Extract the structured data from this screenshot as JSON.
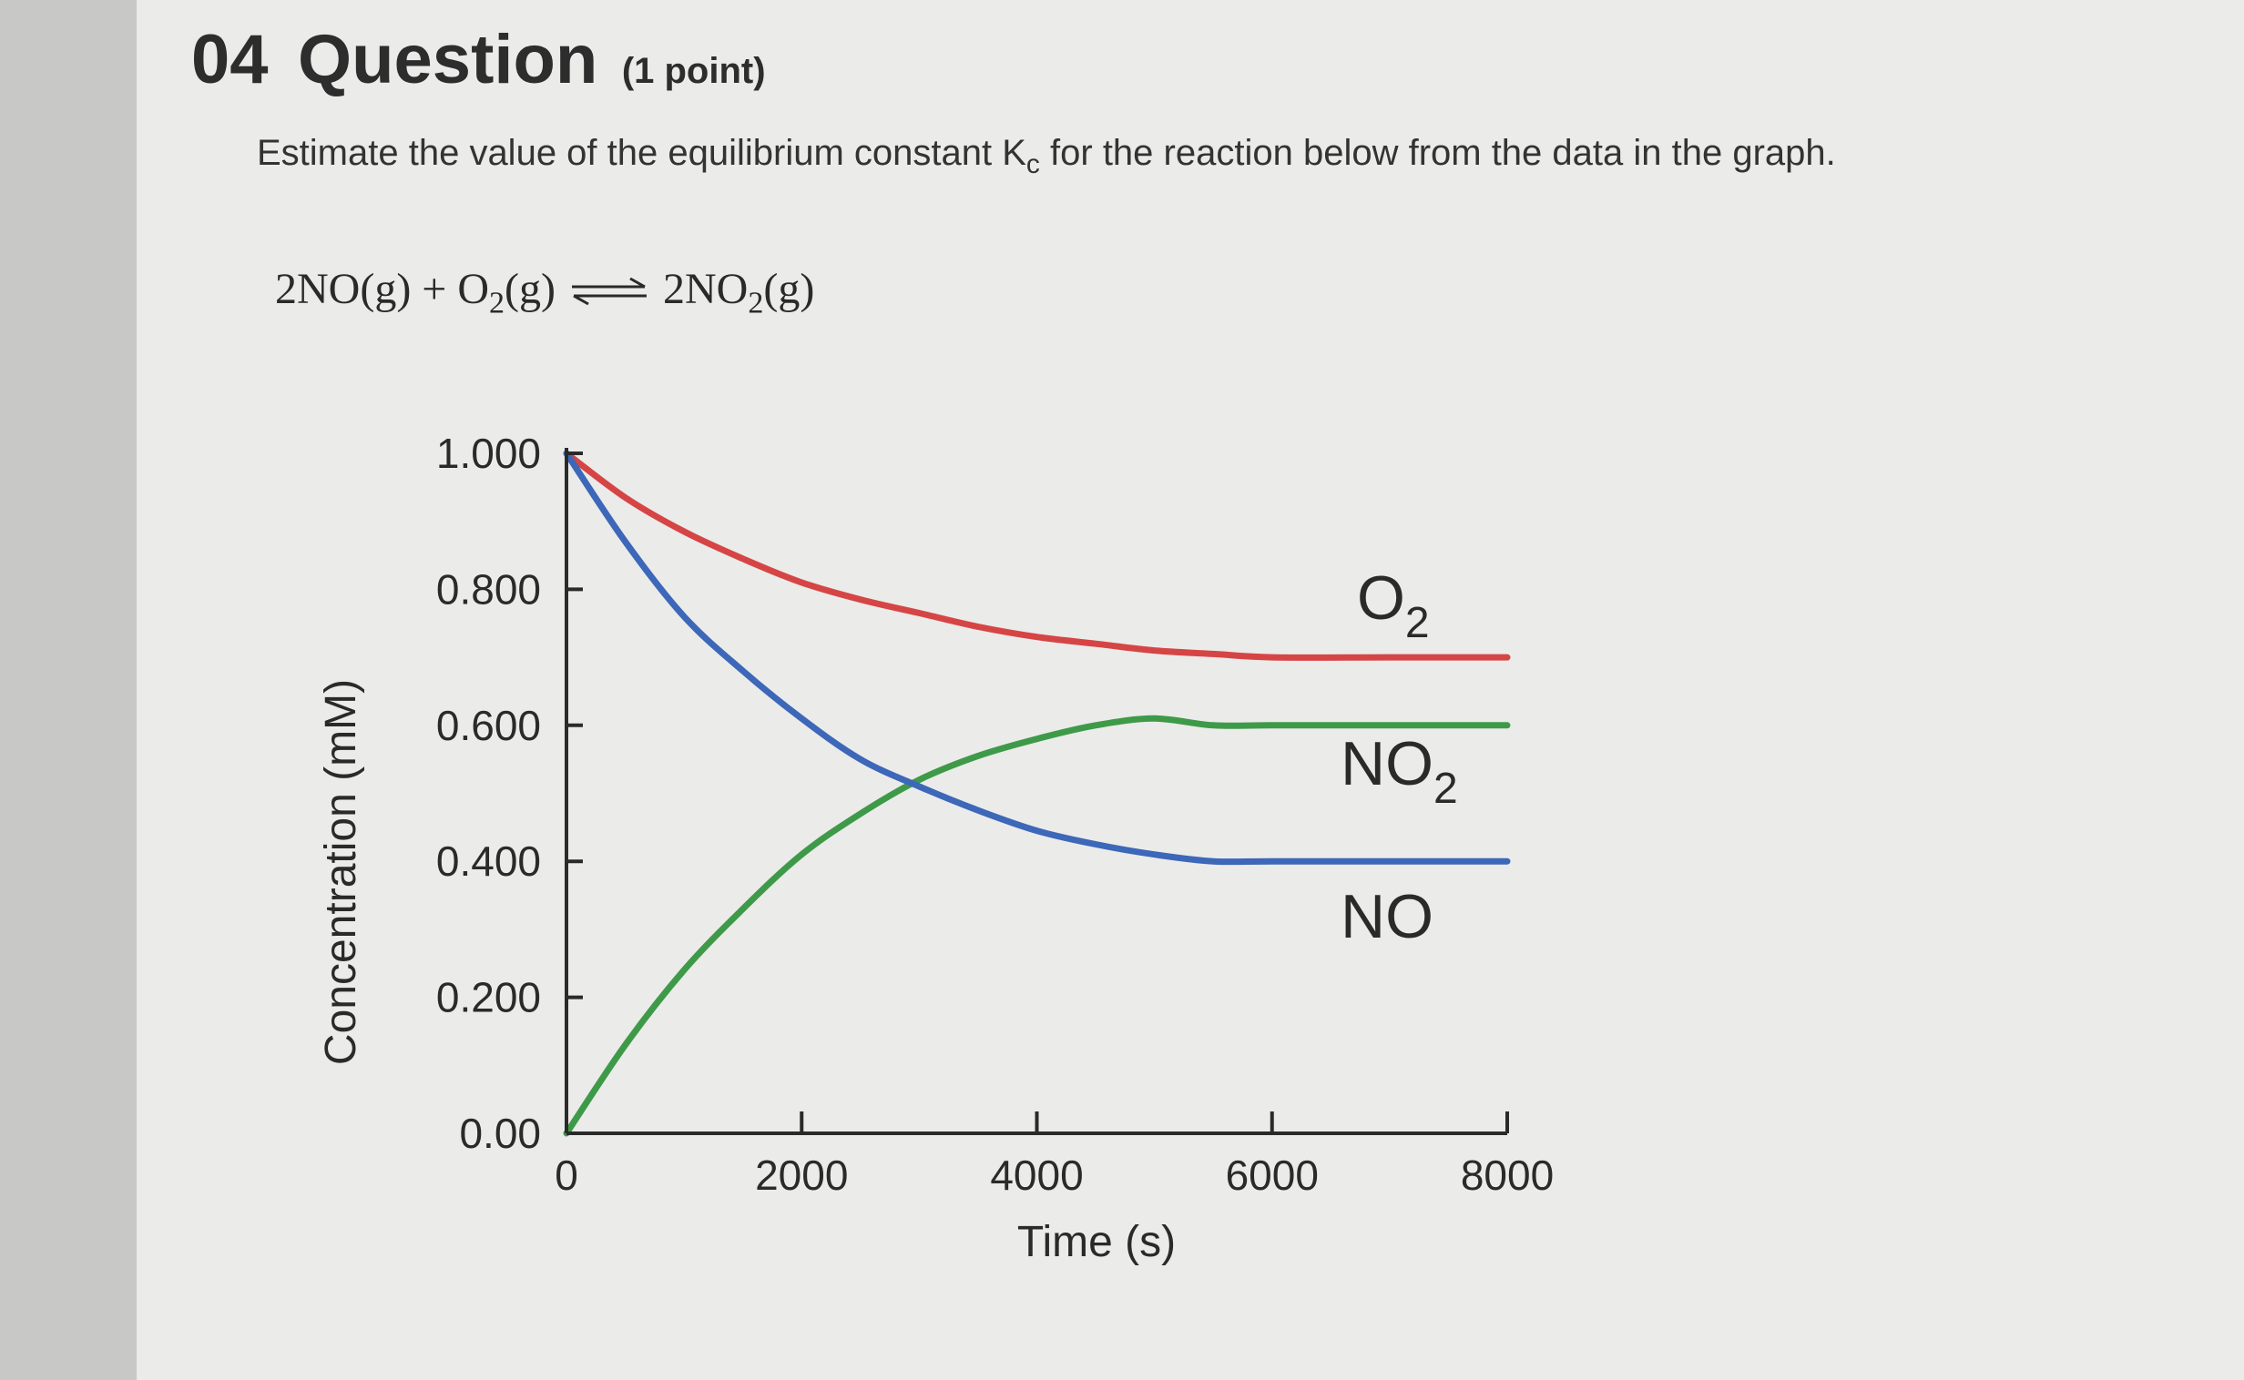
{
  "question": {
    "number": "04",
    "word": "Question",
    "points": "(1 point)",
    "prompt_before": "Estimate the value of the equilibrium constant K",
    "prompt_sub": "c",
    "prompt_after": " for the reaction below from the data in the graph."
  },
  "reaction": {
    "r1": "2NO(g) + O",
    "r1_sub": "2",
    "r1_end": "(g)",
    "p1": "2NO",
    "p1_sub": "2",
    "p1_end": "(g)"
  },
  "colors": {
    "O2": "#d64545",
    "NO2": "#3e9a48",
    "NO": "#3d67b8",
    "axis": "#2a2a2a"
  },
  "chart_data": {
    "type": "line",
    "xlabel": "Time (s)",
    "ylabel": "Concentration (mM)",
    "xlim": [
      0,
      8000
    ],
    "ylim": [
      0,
      1.0
    ],
    "x_ticks": [
      0,
      2000,
      4000,
      6000,
      8000
    ],
    "x_tick_labels": [
      "0",
      "2000",
      "4000",
      "6000",
      "8000"
    ],
    "y_ticks": [
      0,
      0.2,
      0.4,
      0.6,
      0.8,
      1.0
    ],
    "y_tick_labels": [
      "0.00",
      "0.200",
      "0.400",
      "0.600",
      "0.800",
      "1.000"
    ],
    "legend": "inline labels at right end of curves",
    "series": [
      {
        "name": "O",
        "name_sub": "2",
        "color": "#d64545",
        "x": [
          0,
          500,
          1000,
          1500,
          2000,
          2500,
          3000,
          3500,
          4000,
          4500,
          5000,
          5500,
          6000,
          7000,
          8000
        ],
        "y": [
          1.0,
          0.935,
          0.885,
          0.845,
          0.81,
          0.785,
          0.765,
          0.745,
          0.73,
          0.72,
          0.71,
          0.705,
          0.7,
          0.7,
          0.7
        ]
      },
      {
        "name": "NO",
        "name_sub": "2",
        "color": "#3e9a48",
        "x": [
          0,
          500,
          1000,
          1500,
          2000,
          2500,
          3000,
          3500,
          4000,
          4500,
          5000,
          5500,
          6000,
          7000,
          8000
        ],
        "y": [
          0.0,
          0.13,
          0.24,
          0.33,
          0.41,
          0.47,
          0.52,
          0.555,
          0.58,
          0.6,
          0.61,
          0.6,
          0.6,
          0.6,
          0.6
        ]
      },
      {
        "name": "NO",
        "name_sub": "",
        "color": "#3d67b8",
        "x": [
          0,
          500,
          1000,
          1500,
          2000,
          2500,
          3000,
          3500,
          4000,
          4500,
          5000,
          5500,
          6000,
          7000,
          8000
        ],
        "y": [
          1.0,
          0.87,
          0.76,
          0.68,
          0.61,
          0.55,
          0.51,
          0.475,
          0.445,
          0.425,
          0.41,
          0.4,
          0.4,
          0.4,
          0.4
        ]
      }
    ]
  }
}
